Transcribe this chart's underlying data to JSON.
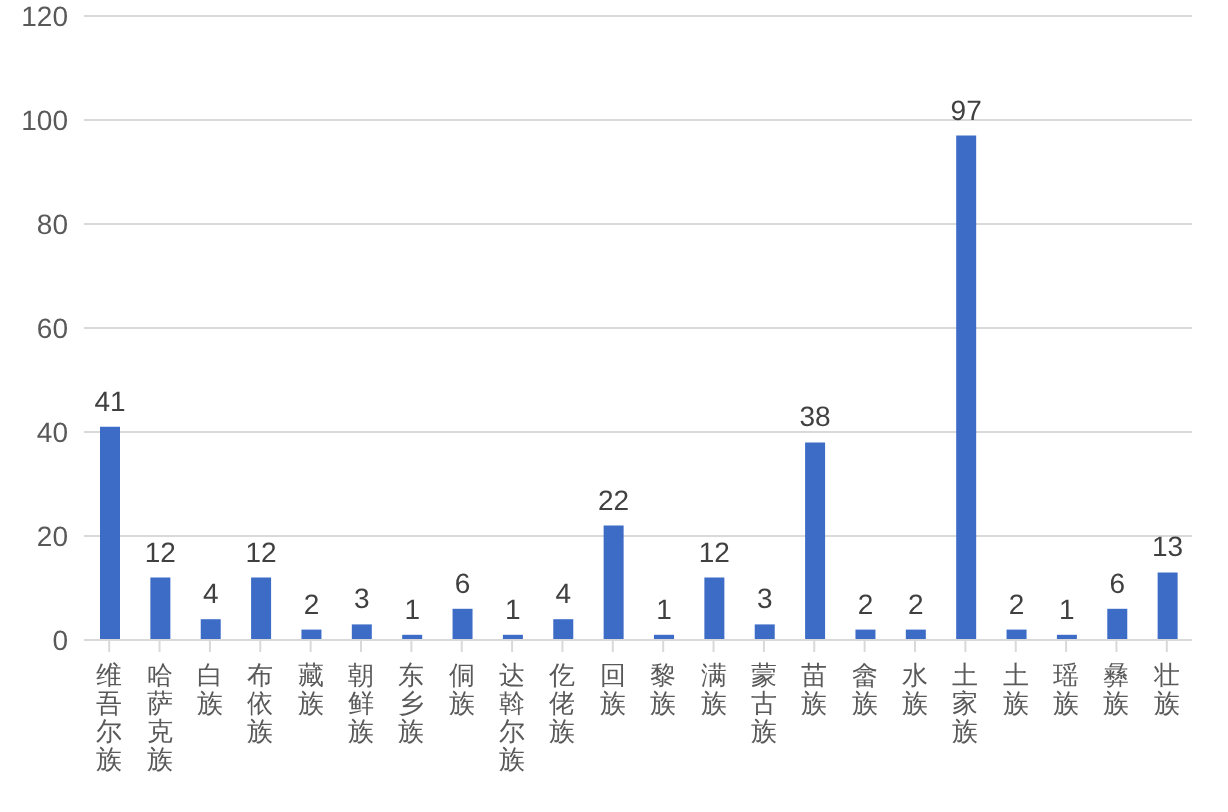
{
  "chart_data": {
    "type": "bar",
    "categories": [
      "维吾尔族",
      "哈萨克族",
      "白族",
      "布依族",
      "藏族",
      "朝鲜族",
      "东乡族",
      "侗族",
      "达斡尔族",
      "仡佬族",
      "回族",
      "黎族",
      "满族",
      "蒙古族",
      "苗族",
      "畲族",
      "水族",
      "土家族",
      "土族",
      "瑶族",
      "彝族",
      "壮族"
    ],
    "values": [
      41,
      12,
      4,
      12,
      2,
      3,
      1,
      6,
      1,
      4,
      22,
      1,
      12,
      3,
      38,
      2,
      2,
      97,
      2,
      1,
      6,
      13
    ],
    "color": "#3d6cc7",
    "ylim": [
      0,
      120
    ],
    "yticks": [
      0,
      20,
      40,
      60,
      80,
      100,
      120
    ],
    "grid": "y",
    "data_labels": true,
    "legend": false
  }
}
